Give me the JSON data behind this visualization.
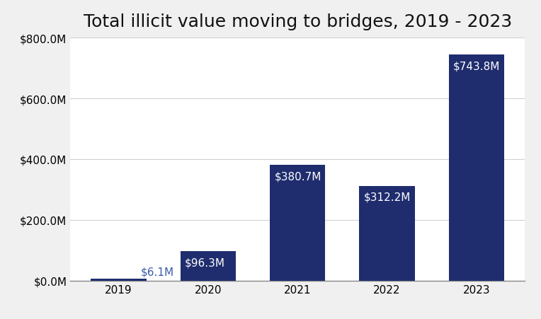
{
  "title": "Total illicit value moving to bridges, 2019 - 2023",
  "categories": [
    "2019",
    "2020",
    "2021",
    "2022",
    "2023"
  ],
  "values": [
    6.1,
    96.3,
    380.7,
    312.2,
    743.8
  ],
  "bar_color": "#1f2d6e",
  "label_colors": [
    "#3a5aad",
    "#ffffff",
    "#ffffff",
    "#ffffff",
    "#ffffff"
  ],
  "background_color": "#f0f0f0",
  "plot_background": "#ffffff",
  "ylim": [
    0,
    800
  ],
  "yticks": [
    0,
    200,
    400,
    600,
    800
  ],
  "title_fontsize": 18,
  "label_fontsize": 11,
  "tick_fontsize": 11,
  "bar_width": 0.62
}
